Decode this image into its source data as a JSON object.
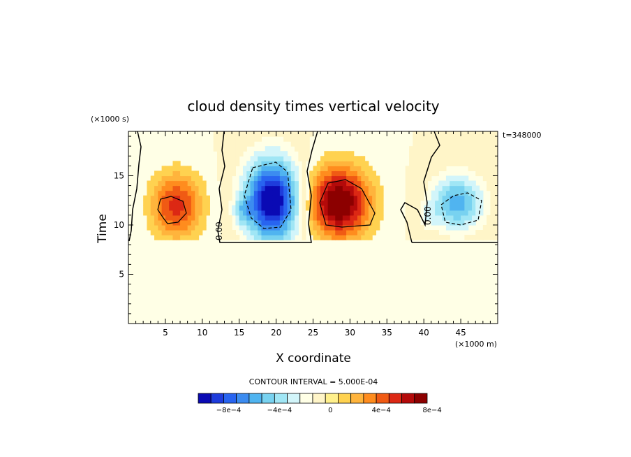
{
  "chart_data": {
    "type": "heatmap",
    "title": "cloud density times vertical velocity",
    "xlabel": "X coordinate",
    "ylabel": "Time",
    "x_unit": "(×1000 m)",
    "y_unit": "(×1000 s)",
    "time_label": "t=348000",
    "xlim": [
      0,
      50
    ],
    "ylim": [
      0,
      19.5
    ],
    "x_ticks": [
      5,
      10,
      15,
      20,
      25,
      30,
      35,
      40,
      45
    ],
    "y_ticks": [
      5,
      10,
      15
    ],
    "contour_interval_text": "CONTOUR INTERVAL = 5.000E-04",
    "contour_label": "0.00",
    "colorbar": {
      "colors": [
        "#0a0ab4",
        "#1e3cdc",
        "#2864f0",
        "#3c8cf0",
        "#50b4f0",
        "#78d2f0",
        "#a0e6f5",
        "#d2f5fa",
        "#ffffe6",
        "#fff5c8",
        "#fff08c",
        "#ffd250",
        "#ffb43c",
        "#ff8c1e",
        "#f05a14",
        "#dc2814",
        "#b40a0a",
        "#8c0000"
      ],
      "tick_labels": [
        "−8e−4",
        "−4e−4",
        "0",
        "4e−4",
        "8e−4"
      ],
      "tick_values": [
        -0.0008,
        -0.0004,
        0,
        0.0004,
        0.0008
      ],
      "vmin": -0.001,
      "vmax": 0.0008
    },
    "series": [
      {
        "x": 6.5,
        "y": 12,
        "amp": 0.00055,
        "sx": 3.4,
        "sy": 3.3
      },
      {
        "x": 19.5,
        "y": 12.5,
        "amp": -0.00105,
        "sx": 3.7,
        "sy": 4.2
      },
      {
        "x": 15.5,
        "y": 11.5,
        "amp": -0.00025,
        "sx": 1.2,
        "sy": 1.3
      },
      {
        "x": 28.5,
        "y": 12.3,
        "amp": 0.00085,
        "sx": 4.2,
        "sy": 3.6
      },
      {
        "x": 44.5,
        "y": 12.3,
        "amp": -0.00055,
        "sx": 3.5,
        "sy": 2.8
      },
      {
        "x": 40.5,
        "y": 11,
        "amp": -0.00015,
        "sx": 1.2,
        "sy": 1.2
      }
    ]
  }
}
